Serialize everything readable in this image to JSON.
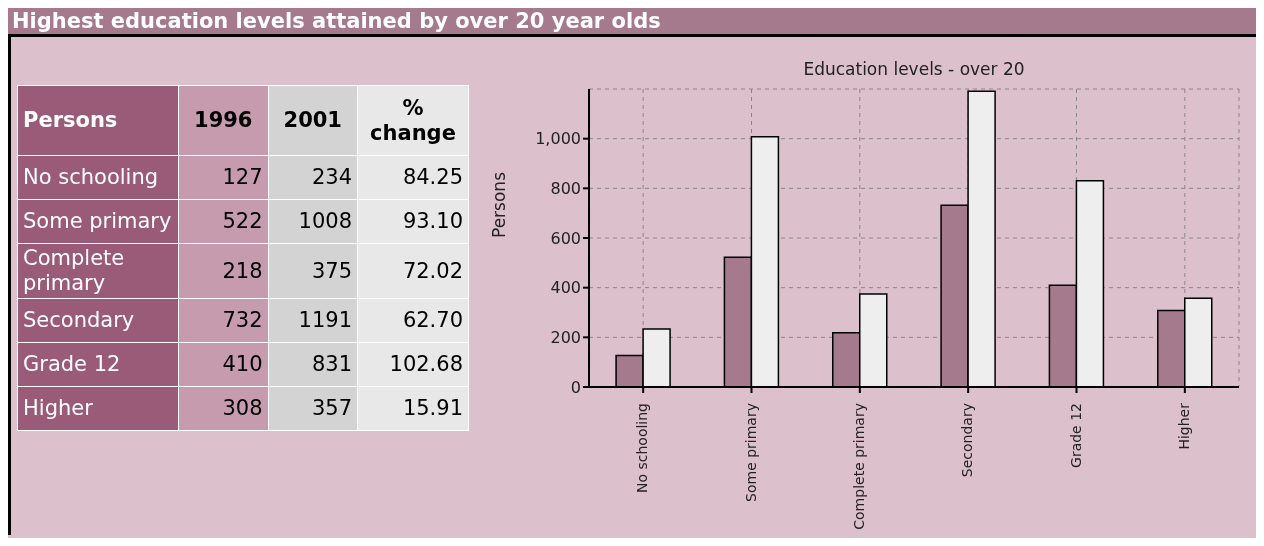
{
  "chart_data": [
    {
      "type": "other",
      "title": "Highest education levels attained by over 20 year olds",
      "ylabel": "Persons",
      "categories": [
        "No schooling",
        "Some primary",
        "Complete primary",
        "Secondary",
        "Grade 12",
        "Higher"
      ],
      "series": [
        {
          "name": "1996",
          "color": "#c69bae",
          "values": [
            127,
            522,
            218,
            732,
            410,
            308
          ]
        },
        {
          "name": "2001",
          "color": "#d3d3d3",
          "values": [
            234,
            1008,
            375,
            1191,
            831,
            357
          ]
        },
        {
          "name": "% change",
          "color": "#e8e8e8",
          "values": [
            84.25,
            93.1,
            72.02,
            62.7,
            102.68,
            15.91
          ],
          "value_labels": [
            "84.25",
            "93.10",
            "72.02",
            "62.70",
            "102.68",
            "15.91"
          ]
        }
      ],
      "data_labels": true,
      "legend": "top"
    },
    {
      "type": "bar",
      "title": "Education levels - over 20",
      "ylabel": "Persons",
      "categories": [
        "No schooling",
        "Some primary",
        "Complete primary",
        "Secondary",
        "Grade 12",
        "Higher"
      ],
      "series": [
        {
          "color": "#a57a8c",
          "values": [
            127,
            522,
            218,
            732,
            410,
            308
          ]
        },
        {
          "color": "#eeeeee",
          "values": [
            234,
            1008,
            375,
            1191,
            831,
            357
          ]
        }
      ],
      "ylim": [
        0,
        1200
      ],
      "yticks": [
        0,
        200,
        400,
        600,
        800,
        {
          "value": 1000,
          "label": "1,000"
        }
      ],
      "grid": true
    }
  ]
}
